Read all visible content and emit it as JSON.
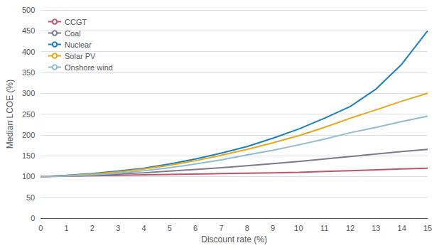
{
  "chart_data": {
    "type": "line",
    "xlabel": "Discount rate (%)",
    "ylabel": "Median LCOE (%)",
    "x": [
      0,
      1,
      2,
      3,
      4,
      5,
      6,
      7,
      8,
      9,
      10,
      11,
      12,
      13,
      14,
      15
    ],
    "series": [
      {
        "name": "CCGT",
        "color": "#c0556a",
        "values": [
          100,
          101,
          102,
          103,
          104,
          105,
          106,
          107,
          108,
          109,
          110,
          112,
          114,
          116,
          118,
          120
        ]
      },
      {
        "name": "Coal",
        "color": "#7a7a8a",
        "values": [
          100,
          101,
          103,
          106,
          109,
          113,
          117,
          121,
          126,
          131,
          136,
          142,
          148,
          154,
          160,
          165
        ]
      },
      {
        "name": "Nuclear",
        "color": "#1b80c0",
        "values": [
          100,
          103,
          107,
          113,
          120,
          130,
          142,
          156,
          172,
          192,
          214,
          240,
          268,
          310,
          370,
          450
        ]
      },
      {
        "name": "Solar PV",
        "color": "#e8a818",
        "values": [
          100,
          102,
          106,
          111,
          118,
          127,
          138,
          151,
          165,
          181,
          198,
          218,
          240,
          260,
          281,
          300
        ]
      },
      {
        "name": "Onshore wind",
        "color": "#90bcd0",
        "values": [
          100,
          101,
          104,
          108,
          114,
          121,
          130,
          140,
          152,
          163,
          176,
          190,
          205,
          218,
          232,
          245
        ]
      }
    ],
    "xlim": [
      0,
      15
    ],
    "ylim": [
      0,
      500
    ],
    "xticks": [
      0,
      1,
      2,
      3,
      4,
      5,
      6,
      7,
      8,
      9,
      10,
      11,
      12,
      13,
      14,
      15
    ],
    "yticks": [
      0,
      50,
      100,
      150,
      200,
      250,
      300,
      350,
      400,
      450,
      500
    ],
    "grid": true,
    "legend": "upper left"
  }
}
